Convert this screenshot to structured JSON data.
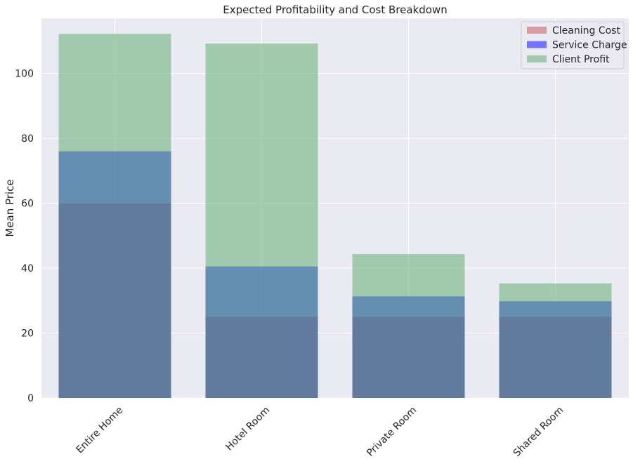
{
  "chart_data": {
    "type": "bar",
    "title": "Expected Profitability and Cost Breakdown",
    "xlabel": "",
    "ylabel": "Mean Price",
    "categories": [
      "Entire Home",
      "Hotel Room",
      "Private Room",
      "Shared Room"
    ],
    "ylim": [
      0,
      117
    ],
    "yticks": [
      0,
      20,
      40,
      60,
      80,
      100
    ],
    "grid": true,
    "legend_position": "top-right",
    "series": [
      {
        "name": "Cleaning Cost",
        "values": [
          60,
          25,
          25,
          25
        ],
        "color": "#c44e52"
      },
      {
        "name": "Service Charge",
        "values": [
          76,
          40.5,
          31.3,
          29.8
        ],
        "color": "#0000ff"
      },
      {
        "name": "Client Profit",
        "values": [
          112.2,
          109.2,
          44.3,
          35.3
        ],
        "color": "#55a868"
      }
    ],
    "overlap": "overlaid"
  }
}
